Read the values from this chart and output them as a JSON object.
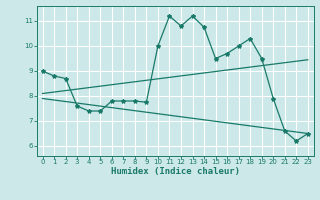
{
  "xlabel": "Humidex (Indice chaleur)",
  "bg_color": "#cce8e8",
  "grid_color": "#ffffff",
  "line_color": "#1a7a6a",
  "xlim": [
    -0.5,
    23.5
  ],
  "ylim": [
    5.6,
    11.6
  ],
  "xticks": [
    0,
    1,
    2,
    3,
    4,
    5,
    6,
    7,
    8,
    9,
    10,
    11,
    12,
    13,
    14,
    15,
    16,
    17,
    18,
    19,
    20,
    21,
    22,
    23
  ],
  "yticks": [
    6,
    7,
    8,
    9,
    10,
    11
  ],
  "line1_x": [
    0,
    1,
    2,
    3,
    4,
    5,
    6,
    7,
    8,
    9,
    10,
    11,
    12,
    13,
    14,
    15,
    16,
    17,
    18,
    19,
    20,
    21,
    22,
    23
  ],
  "line1_y": [
    9.0,
    8.8,
    8.7,
    7.6,
    7.4,
    7.4,
    7.8,
    7.8,
    7.8,
    7.75,
    10.0,
    11.2,
    10.8,
    11.2,
    10.75,
    9.5,
    9.7,
    10.0,
    10.3,
    9.5,
    7.9,
    6.6,
    6.2,
    6.5
  ],
  "line2_x": [
    0,
    23
  ],
  "line2_y": [
    8.1,
    9.45
  ],
  "line3_x": [
    0,
    23
  ],
  "line3_y": [
    7.9,
    6.5
  ]
}
